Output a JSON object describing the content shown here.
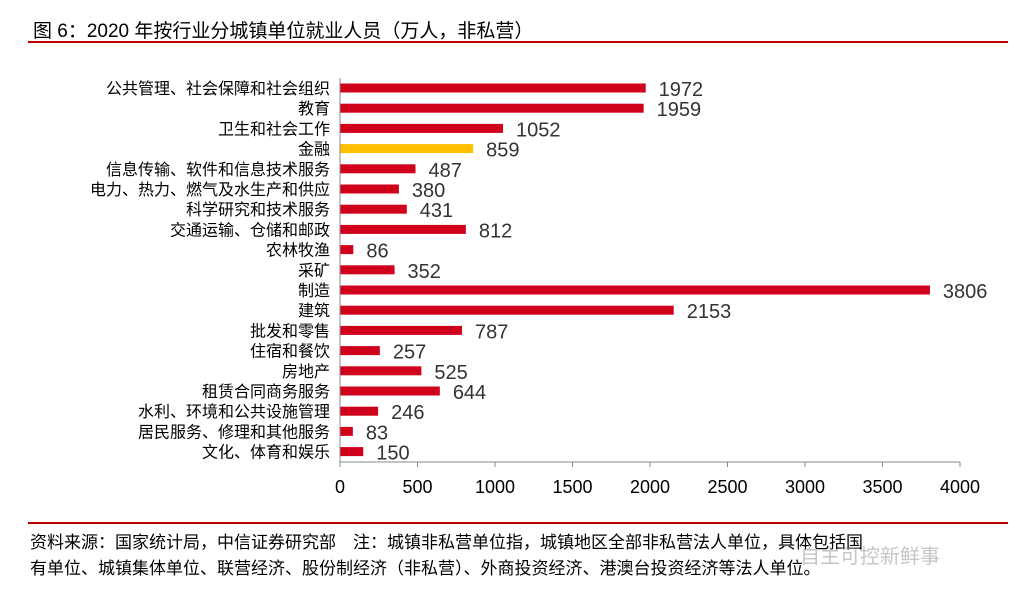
{
  "chart_data": {
    "type": "bar",
    "orientation": "horizontal",
    "title": "图 6：2020 年按行业分城镇单位就业人员（万人，非私营）",
    "categories": [
      "公共管理、社会保障和社会组织",
      "教育",
      "卫生和社会工作",
      "金融",
      "信息传输、软件和信息技术服务",
      "电力、热力、燃气及水生产和供应",
      "科学研究和技术服务",
      "交通运输、仓储和邮政",
      "农林牧渔",
      "采矿",
      "制造",
      "建筑",
      "批发和零售",
      "住宿和餐饮",
      "房地产",
      "租赁合同商务服务",
      "水利、环境和公共设施管理",
      "居民服务、修理和其他服务",
      "文化、体育和娱乐"
    ],
    "values": [
      1972,
      1959,
      1052,
      859,
      487,
      380,
      431,
      812,
      86,
      352,
      3806,
      2153,
      787,
      257,
      525,
      644,
      246,
      83,
      150
    ],
    "highlight_index": 3,
    "xlim": [
      0,
      4000
    ],
    "xticks": [
      "0",
      "500",
      "1000",
      "1500",
      "2000",
      "2500",
      "3000",
      "3500",
      "4000"
    ],
    "colors": {
      "bar": "#d0021b",
      "highlight": "#ffc000",
      "rule": "#c00000"
    },
    "grid": false,
    "legend": "none"
  },
  "footer": {
    "line1": "资料来源：国家统计局，中信证券研究部　注：城镇非私营单位指，城镇地区全部非私营法人单位，具体包括国",
    "line2": "有单位、城镇集体单位、联营经济、股份制经济（非私营）、外商投资经济、港澳台投资经济等法人单位。"
  },
  "watermark": "自主可控新鲜事"
}
